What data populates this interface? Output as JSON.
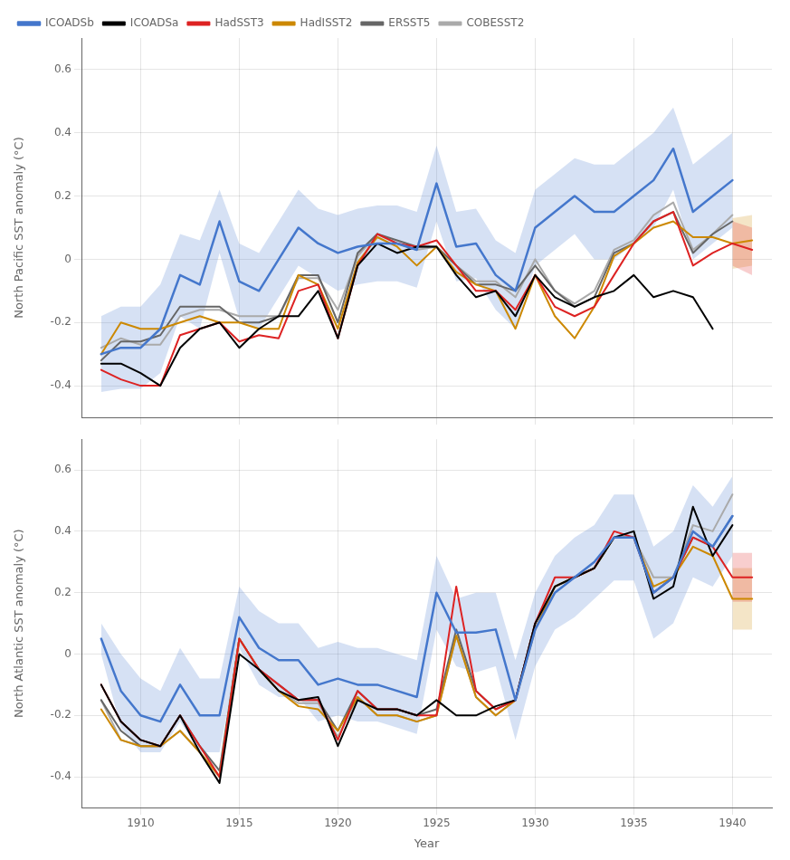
{
  "chart_data": [
    {
      "type": "line",
      "x": [
        1908,
        1909,
        1910,
        1911,
        1912,
        1913,
        1914,
        1915,
        1916,
        1917,
        1918,
        1919,
        1920,
        1921,
        1922,
        1923,
        1924,
        1925,
        1926,
        1927,
        1928,
        1929,
        1930,
        1931,
        1932,
        1933,
        1934,
        1935,
        1936,
        1937,
        1938,
        1939,
        1940,
        1941
      ],
      "y_label": "North Pacific SST anomaly (°C)",
      "xlim": [
        1907,
        1942
      ],
      "xticks": [
        1910,
        1915,
        1920,
        1925,
        1930,
        1935,
        1940
      ],
      "ylim": [
        -0.5,
        0.7
      ],
      "yticks": [
        -0.4,
        -0.2,
        0,
        0.2,
        0.4,
        0.6
      ],
      "grid": true,
      "legend": "upper left",
      "tick_labels": "y",
      "series": [
        {
          "name": "ICOADSb",
          "color": "#4477CC",
          "values": [
            -0.3,
            -0.28,
            -0.28,
            -0.22,
            -0.05,
            -0.08,
            0.12,
            -0.07,
            -0.1,
            0.0,
            0.1,
            0.05,
            0.02,
            0.04,
            0.05,
            0.05,
            0.03,
            0.24,
            0.04,
            0.05,
            -0.05,
            -0.1,
            0.1,
            0.15,
            0.2,
            0.15,
            0.15,
            0.2,
            0.25,
            0.35,
            0.15,
            0.2,
            0.25,
            null
          ],
          "upper": [
            -0.18,
            -0.15,
            -0.15,
            -0.08,
            0.08,
            0.06,
            0.22,
            0.05,
            0.02,
            0.12,
            0.22,
            0.16,
            0.14,
            0.16,
            0.17,
            0.17,
            0.15,
            0.36,
            0.15,
            0.16,
            0.06,
            0.02,
            0.22,
            0.27,
            0.32,
            0.3,
            0.3,
            0.35,
            0.4,
            0.48,
            0.3,
            0.35,
            0.4,
            null
          ],
          "lower": [
            -0.42,
            -0.41,
            -0.41,
            -0.36,
            -0.18,
            -0.22,
            0.02,
            -0.19,
            -0.22,
            -0.12,
            -0.02,
            -0.06,
            -0.1,
            -0.08,
            -0.07,
            -0.07,
            -0.09,
            0.12,
            -0.07,
            -0.06,
            -0.16,
            -0.22,
            -0.02,
            0.03,
            0.08,
            0.0,
            0.0,
            0.05,
            0.1,
            0.22,
            0.0,
            0.05,
            0.1,
            null
          ]
        },
        {
          "name": "ICOADSa",
          "color": "#000000",
          "values": [
            -0.33,
            -0.33,
            -0.36,
            -0.4,
            -0.28,
            -0.22,
            -0.2,
            -0.28,
            -0.22,
            -0.18,
            -0.18,
            -0.1,
            -0.25,
            -0.02,
            0.05,
            0.02,
            0.04,
            0.04,
            -0.05,
            -0.12,
            -0.1,
            -0.18,
            -0.05,
            -0.12,
            -0.15,
            -0.12,
            -0.1,
            -0.05,
            -0.12,
            -0.1,
            -0.12,
            -0.22,
            null,
            null
          ]
        },
        {
          "name": "HadSST3",
          "color": "#DD2222",
          "values": [
            -0.35,
            -0.38,
            -0.4,
            -0.4,
            -0.24,
            -0.22,
            -0.2,
            -0.26,
            -0.24,
            -0.25,
            -0.1,
            -0.08,
            -0.25,
            -0.02,
            0.08,
            0.05,
            0.04,
            0.06,
            -0.02,
            -0.1,
            -0.1,
            -0.16,
            -0.05,
            -0.15,
            -0.18,
            -0.15,
            -0.05,
            0.05,
            0.12,
            0.15,
            -0.02,
            0.02,
            0.05,
            0.03
          ],
          "upper": [
            null,
            null,
            null,
            null,
            null,
            null,
            null,
            null,
            null,
            null,
            null,
            null,
            null,
            null,
            null,
            null,
            null,
            null,
            null,
            null,
            null,
            null,
            null,
            null,
            null,
            null,
            null,
            null,
            null,
            null,
            null,
            null,
            0.12,
            0.1
          ],
          "lower": [
            null,
            null,
            null,
            null,
            null,
            null,
            null,
            null,
            null,
            null,
            null,
            null,
            null,
            null,
            null,
            null,
            null,
            null,
            null,
            null,
            null,
            null,
            null,
            null,
            null,
            null,
            null,
            null,
            null,
            null,
            null,
            null,
            -0.02,
            -0.05
          ]
        },
        {
          "name": "HadISST2",
          "color": "#CC8800",
          "values": [
            -0.3,
            -0.2,
            -0.22,
            -0.22,
            -0.2,
            -0.18,
            -0.2,
            -0.2,
            -0.22,
            -0.22,
            -0.05,
            -0.08,
            -0.22,
            -0.01,
            0.07,
            0.04,
            -0.02,
            0.04,
            -0.04,
            -0.08,
            -0.1,
            -0.22,
            -0.05,
            -0.18,
            -0.25,
            -0.15,
            0.01,
            0.05,
            0.1,
            0.12,
            0.07,
            0.07,
            0.05,
            0.06
          ],
          "upper": [
            null,
            null,
            null,
            null,
            null,
            null,
            null,
            null,
            null,
            null,
            null,
            null,
            null,
            null,
            null,
            null,
            null,
            null,
            null,
            null,
            null,
            null,
            null,
            null,
            null,
            null,
            null,
            null,
            null,
            null,
            null,
            null,
            0.13,
            0.14
          ],
          "lower": [
            null,
            null,
            null,
            null,
            null,
            null,
            null,
            null,
            null,
            null,
            null,
            null,
            null,
            null,
            null,
            null,
            null,
            null,
            null,
            null,
            null,
            null,
            null,
            null,
            null,
            null,
            null,
            null,
            null,
            null,
            null,
            null,
            -0.03,
            -0.02
          ]
        },
        {
          "name": "ERSST5",
          "color": "#666666",
          "values": [
            -0.32,
            -0.26,
            -0.26,
            -0.24,
            -0.15,
            -0.15,
            -0.15,
            -0.2,
            -0.2,
            -0.18,
            -0.05,
            -0.05,
            -0.2,
            0.02,
            0.08,
            0.06,
            0.04,
            0.04,
            -0.02,
            -0.08,
            -0.08,
            -0.1,
            -0.02,
            -0.1,
            -0.15,
            -0.12,
            0.02,
            0.05,
            0.12,
            0.15,
            0.02,
            0.08,
            0.12,
            null
          ]
        },
        {
          "name": "COBESST2",
          "color": "#AAAAAA",
          "values": [
            -0.28,
            -0.25,
            -0.27,
            -0.27,
            -0.18,
            -0.16,
            -0.16,
            -0.18,
            -0.18,
            -0.18,
            -0.06,
            -0.06,
            -0.16,
            0.01,
            0.08,
            0.05,
            0.03,
            0.04,
            -0.02,
            -0.07,
            -0.07,
            -0.12,
            0.0,
            -0.1,
            -0.14,
            -0.1,
            0.03,
            0.06,
            0.14,
            0.18,
            0.03,
            0.08,
            0.14,
            null
          ]
        }
      ]
    },
    {
      "type": "line",
      "x": [
        1908,
        1909,
        1910,
        1911,
        1912,
        1913,
        1914,
        1915,
        1916,
        1917,
        1918,
        1919,
        1920,
        1921,
        1922,
        1923,
        1924,
        1925,
        1926,
        1927,
        1928,
        1929,
        1930,
        1931,
        1932,
        1933,
        1934,
        1935,
        1936,
        1937,
        1938,
        1939,
        1940,
        1941
      ],
      "x_label": "Year",
      "y_label": "North Atlantic SST anomaly (°C)",
      "xlim": [
        1907,
        1942
      ],
      "xticks": [
        1910,
        1915,
        1920,
        1925,
        1930,
        1935,
        1940
      ],
      "ylim": [
        -0.5,
        0.7
      ],
      "yticks": [
        -0.4,
        -0.2,
        0,
        0.2,
        0.4,
        0.6
      ],
      "grid": true,
      "series": [
        {
          "name": "ICOADSb",
          "color": "#4477CC",
          "values": [
            0.05,
            -0.12,
            -0.2,
            -0.22,
            -0.1,
            -0.2,
            -0.2,
            0.12,
            0.02,
            -0.02,
            -0.02,
            -0.1,
            -0.08,
            -0.1,
            -0.1,
            -0.12,
            -0.14,
            0.2,
            0.07,
            0.07,
            0.08,
            -0.15,
            0.08,
            0.2,
            0.25,
            0.3,
            0.38,
            0.38,
            0.2,
            0.25,
            0.4,
            0.35,
            0.45,
            null
          ],
          "upper": [
            0.1,
            0.0,
            -0.08,
            -0.12,
            0.02,
            -0.08,
            -0.08,
            0.22,
            0.14,
            0.1,
            0.1,
            0.02,
            0.04,
            0.02,
            0.02,
            0.0,
            -0.02,
            0.32,
            0.18,
            0.2,
            0.2,
            -0.02,
            0.2,
            0.32,
            0.38,
            0.42,
            0.52,
            0.52,
            0.35,
            0.4,
            0.55,
            0.48,
            0.58,
            null
          ],
          "lower": [
            0.0,
            -0.24,
            -0.32,
            -0.32,
            -0.22,
            -0.32,
            -0.32,
            0.02,
            -0.1,
            -0.14,
            -0.14,
            -0.22,
            -0.2,
            -0.22,
            -0.22,
            -0.24,
            -0.26,
            0.08,
            -0.04,
            -0.06,
            -0.04,
            -0.28,
            -0.04,
            0.08,
            0.12,
            0.18,
            0.24,
            0.24,
            0.05,
            0.1,
            0.25,
            0.22,
            0.32,
            null
          ]
        },
        {
          "name": "ICOADSa",
          "color": "#000000",
          "values": [
            -0.1,
            -0.22,
            -0.28,
            -0.3,
            -0.2,
            -0.32,
            -0.42,
            0.0,
            -0.05,
            -0.12,
            -0.15,
            -0.14,
            -0.3,
            -0.15,
            -0.18,
            -0.18,
            -0.2,
            -0.15,
            -0.2,
            -0.2,
            -0.17,
            -0.15,
            0.1,
            0.22,
            0.25,
            0.28,
            0.38,
            0.4,
            0.18,
            0.22,
            0.48,
            0.32,
            0.42,
            null
          ]
        },
        {
          "name": "HadSST3",
          "color": "#DD2222",
          "values": [
            -0.1,
            -0.22,
            -0.28,
            -0.3,
            -0.2,
            -0.3,
            -0.4,
            0.05,
            -0.05,
            -0.1,
            -0.15,
            -0.15,
            -0.28,
            -0.12,
            -0.18,
            -0.18,
            -0.2,
            -0.2,
            0.22,
            -0.12,
            -0.18,
            -0.15,
            0.1,
            0.25,
            0.25,
            0.28,
            0.4,
            0.38,
            0.2,
            0.25,
            0.38,
            0.35,
            0.25,
            0.25
          ],
          "upper": [
            null,
            null,
            null,
            null,
            null,
            null,
            null,
            null,
            null,
            null,
            null,
            null,
            null,
            null,
            null,
            null,
            null,
            null,
            null,
            null,
            null,
            null,
            null,
            null,
            null,
            null,
            null,
            null,
            null,
            null,
            null,
            null,
            0.33,
            0.33
          ],
          "lower": [
            null,
            null,
            null,
            null,
            null,
            null,
            null,
            null,
            null,
            null,
            null,
            null,
            null,
            null,
            null,
            null,
            null,
            null,
            null,
            null,
            null,
            null,
            null,
            null,
            null,
            null,
            null,
            null,
            null,
            null,
            null,
            null,
            0.17,
            0.17
          ]
        },
        {
          "name": "HadISST2",
          "color": "#CC8800",
          "values": [
            -0.18,
            -0.28,
            -0.3,
            -0.3,
            -0.25,
            -0.32,
            -0.4,
            0.05,
            -0.05,
            -0.12,
            -0.17,
            -0.18,
            -0.25,
            -0.14,
            -0.2,
            -0.2,
            -0.22,
            -0.2,
            0.06,
            -0.14,
            -0.2,
            -0.15,
            0.08,
            0.22,
            0.25,
            0.28,
            0.38,
            0.38,
            0.22,
            0.25,
            0.35,
            0.32,
            0.18,
            0.18
          ],
          "upper": [
            null,
            null,
            null,
            null,
            null,
            null,
            null,
            null,
            null,
            null,
            null,
            null,
            null,
            null,
            null,
            null,
            null,
            null,
            null,
            null,
            null,
            null,
            null,
            null,
            null,
            null,
            null,
            null,
            null,
            null,
            null,
            null,
            0.28,
            0.28
          ],
          "lower": [
            null,
            null,
            null,
            null,
            null,
            null,
            null,
            null,
            null,
            null,
            null,
            null,
            null,
            null,
            null,
            null,
            null,
            null,
            null,
            null,
            null,
            null,
            null,
            null,
            null,
            null,
            null,
            null,
            null,
            null,
            null,
            null,
            0.08,
            0.08
          ]
        },
        {
          "name": "ERSST5",
          "color": "#666666",
          "values": [
            -0.15,
            -0.25,
            -0.3,
            -0.3,
            -0.2,
            -0.3,
            -0.38,
            0.05,
            -0.05,
            -0.1,
            -0.15,
            -0.15,
            -0.25,
            -0.12,
            -0.18,
            -0.18,
            -0.2,
            -0.18,
            0.08,
            -0.12,
            -0.18,
            -0.15,
            0.1,
            0.22,
            0.25,
            0.28,
            0.38,
            0.38,
            0.2,
            0.25,
            0.38,
            0.35,
            0.45,
            null
          ]
        },
        {
          "name": "COBESST2",
          "color": "#AAAAAA",
          "values": [
            -0.15,
            -0.28,
            -0.3,
            -0.3,
            -0.25,
            -0.32,
            -0.4,
            0.05,
            -0.05,
            -0.12,
            -0.16,
            -0.16,
            -0.27,
            -0.14,
            -0.2,
            -0.2,
            -0.22,
            -0.2,
            0.06,
            -0.14,
            -0.2,
            -0.15,
            0.1,
            0.22,
            0.25,
            0.28,
            0.38,
            0.38,
            0.25,
            0.25,
            0.42,
            0.4,
            0.52,
            null
          ]
        }
      ]
    }
  ]
}
